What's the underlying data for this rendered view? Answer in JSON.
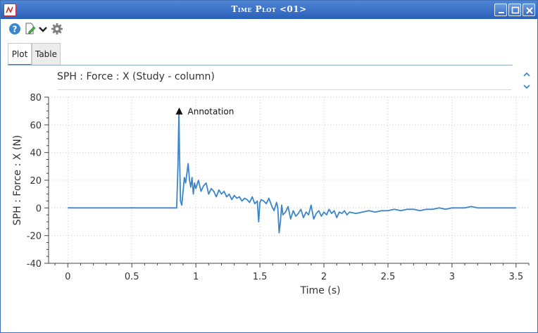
{
  "window": {
    "title": "Time Plot <01>",
    "icons": {
      "app": "app-logo-icon",
      "minimize": "minimize-icon",
      "maximize": "maximize-icon",
      "close": "close-icon"
    }
  },
  "toolbar": {
    "icons": [
      "help-icon",
      "edit-document-icon",
      "chevron-down-icon",
      "gear-icon"
    ]
  },
  "tabs": [
    {
      "label": "Plot",
      "active": true
    },
    {
      "label": "Table",
      "active": false
    }
  ],
  "plot_header": {
    "label": "SPH : Force : X (Study - column)"
  },
  "accent_color": "#3a86cc",
  "chart_data": {
    "type": "line",
    "title": "",
    "xlabel": "Time (s)",
    "ylabel": "SPH : Force : X (N)",
    "xlim": [
      -0.15,
      3.6
    ],
    "ylim": [
      -40,
      80
    ],
    "xticks": [
      0,
      0.5,
      1,
      1.5,
      2,
      2.5,
      3,
      3.5
    ],
    "xtick_labels": [
      "0",
      "0.5",
      "1",
      "1.5",
      "2",
      "2.5",
      "3",
      "3.5"
    ],
    "yticks": [
      -40,
      -20,
      0,
      20,
      40,
      60,
      80
    ],
    "ytick_labels": [
      "-40",
      "-20",
      "0",
      "20",
      "40",
      "60",
      "80"
    ],
    "grid": true,
    "annotation": {
      "text": "Annotation",
      "x": 0.87,
      "y": 70
    },
    "series": [
      {
        "color": "#3a86cc",
        "x": [
          0,
          0.5,
          0.85,
          0.86,
          0.868,
          0.872,
          0.88,
          0.89,
          0.9,
          0.91,
          0.92,
          0.93,
          0.94,
          0.95,
          0.96,
          0.97,
          0.98,
          0.99,
          1.0,
          1.02,
          1.04,
          1.06,
          1.08,
          1.1,
          1.12,
          1.14,
          1.16,
          1.18,
          1.2,
          1.22,
          1.24,
          1.26,
          1.28,
          1.3,
          1.32,
          1.34,
          1.36,
          1.38,
          1.4,
          1.42,
          1.44,
          1.46,
          1.48,
          1.49,
          1.5,
          1.51,
          1.53,
          1.55,
          1.57,
          1.59,
          1.61,
          1.63,
          1.64,
          1.65,
          1.66,
          1.67,
          1.68,
          1.7,
          1.72,
          1.74,
          1.76,
          1.78,
          1.8,
          1.82,
          1.84,
          1.86,
          1.88,
          1.9,
          1.92,
          1.94,
          1.96,
          1.98,
          2.0,
          2.02,
          2.04,
          2.06,
          2.08,
          2.1,
          2.12,
          2.14,
          2.16,
          2.18,
          2.2,
          2.25,
          2.3,
          2.35,
          2.4,
          2.45,
          2.5,
          2.55,
          2.6,
          2.65,
          2.7,
          2.75,
          2.8,
          2.85,
          2.9,
          2.95,
          3.0,
          3.05,
          3.1,
          3.15,
          3.2,
          3.25,
          3.3,
          3.35,
          3.4,
          3.45,
          3.5
        ],
        "y": [
          0,
          0,
          0,
          30,
          70,
          40,
          5,
          2,
          12,
          22,
          18,
          25,
          32,
          20,
          15,
          22,
          10,
          18,
          14,
          20,
          12,
          16,
          18,
          10,
          14,
          12,
          8,
          13,
          10,
          12,
          8,
          10,
          6,
          9,
          7,
          8,
          5,
          7,
          6,
          4,
          8,
          3,
          5,
          -10,
          4,
          6,
          5,
          3,
          7,
          2,
          -2,
          4,
          0,
          -18,
          -10,
          2,
          -5,
          -3,
          1,
          -8,
          -2,
          -6,
          -4,
          -1,
          -7,
          -3,
          -5,
          2,
          -8,
          -4,
          -2,
          -6,
          -3,
          -5,
          -1,
          -4,
          -2,
          -7,
          -3,
          -4,
          -2,
          -5,
          -3,
          -4,
          -3,
          -2,
          -3,
          -2,
          -2,
          -1,
          -2,
          -1,
          -1,
          -2,
          -1,
          -1,
          0,
          -1,
          0,
          0,
          0,
          1,
          0,
          0,
          0,
          0,
          0,
          0,
          0
        ]
      }
    ]
  }
}
